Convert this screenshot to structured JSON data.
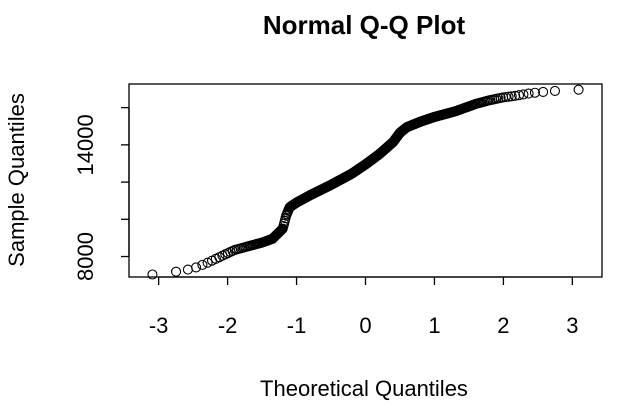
{
  "chart_data": {
    "type": "scatter",
    "title": "Normal Q-Q Plot",
    "xlabel": "Theoretical Quantiles",
    "ylabel": "Sample Quantiles",
    "xlim": [
      -3.43,
      3.43
    ],
    "ylim": [
      6900,
      17270
    ],
    "x_ticks": [
      -3,
      -2,
      -1,
      0,
      1,
      2,
      3
    ],
    "x_tick_labels": [
      "-3",
      "-2",
      "-1",
      "0",
      "1",
      "2",
      "3"
    ],
    "y_ticks": [
      8000,
      14000
    ],
    "y_tick_labels": [
      "8000",
      "14000"
    ],
    "y_minor_ticks": [
      8000,
      10000,
      12000,
      14000,
      16000
    ],
    "grid": false,
    "marker": "open-circle",
    "marker_color": "#000000",
    "curve": {
      "x": [
        -3.29,
        -3.0,
        -2.8,
        -2.5,
        -2.3,
        -2.1,
        -1.9,
        -1.7,
        -1.5,
        -1.35,
        -1.2,
        -1.15,
        -1.1,
        -1.0,
        -0.8,
        -0.5,
        -0.2,
        0.0,
        0.2,
        0.4,
        0.5,
        0.6,
        0.8,
        1.0,
        1.3,
        1.6,
        1.8,
        2.0,
        2.2,
        2.4,
        2.6,
        2.75,
        2.95,
        3.29
      ],
      "y": [
        7000,
        7050,
        7150,
        7350,
        7650,
        8000,
        8350,
        8550,
        8750,
        8950,
        9500,
        10200,
        10650,
        10900,
        11300,
        11850,
        12450,
        12950,
        13500,
        14150,
        14650,
        14950,
        15250,
        15500,
        15800,
        16200,
        16400,
        16550,
        16650,
        16780,
        16850,
        16900,
        16950,
        16980
      ]
    },
    "points_count": 500
  }
}
